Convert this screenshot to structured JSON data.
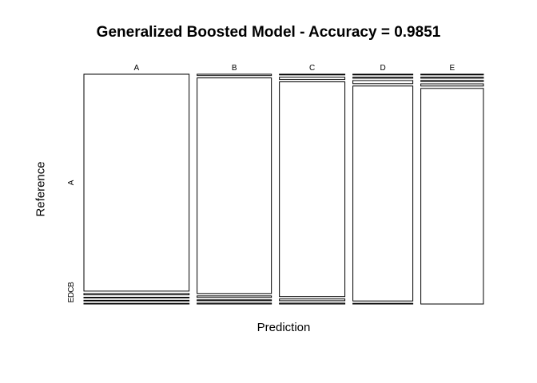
{
  "chart_data": {
    "type": "mosaic",
    "title": "Generalized Boosted Model - Accuracy = 0.9851",
    "xlabel": "Prediction",
    "ylabel": "Reference",
    "x_categories": [
      "A",
      "B",
      "C",
      "D",
      "E"
    ],
    "y_categories": [
      "A",
      "B",
      "C",
      "D",
      "E"
    ],
    "y_tick_labels": [
      "A",
      "B",
      "C",
      "D",
      "E"
    ],
    "column_widths": [
      0.2862,
      0.2022,
      0.1781,
      0.1631,
      0.1703
    ],
    "cells": [
      {
        "prediction": "A",
        "reference": [
          "A",
          "B",
          "C",
          "D",
          "E"
        ],
        "proportions": [
          0.985,
          0.006,
          0.003,
          0.003,
          0.003
        ]
      },
      {
        "prediction": "B",
        "reference": [
          "A",
          "B",
          "C",
          "D",
          "E"
        ],
        "proportions": [
          0.006,
          0.979,
          0.007,
          0.004,
          0.004
        ]
      },
      {
        "prediction": "C",
        "reference": [
          "A",
          "B",
          "C",
          "D",
          "E"
        ],
        "proportions": [
          0.003,
          0.01,
          0.975,
          0.008,
          0.004
        ]
      },
      {
        "prediction": "D",
        "reference": [
          "A",
          "B",
          "C",
          "D",
          "E"
        ],
        "proportions": [
          0.003,
          0.004,
          0.014,
          0.976,
          0.003
        ]
      },
      {
        "prediction": "E",
        "reference": [
          "A",
          "B",
          "C",
          "D",
          "E"
        ],
        "proportions": [
          0.003,
          0.004,
          0.004,
          0.01,
          0.979
        ]
      }
    ],
    "colors": {
      "stroke": "#000000",
      "fill": "#ffffff"
    }
  }
}
